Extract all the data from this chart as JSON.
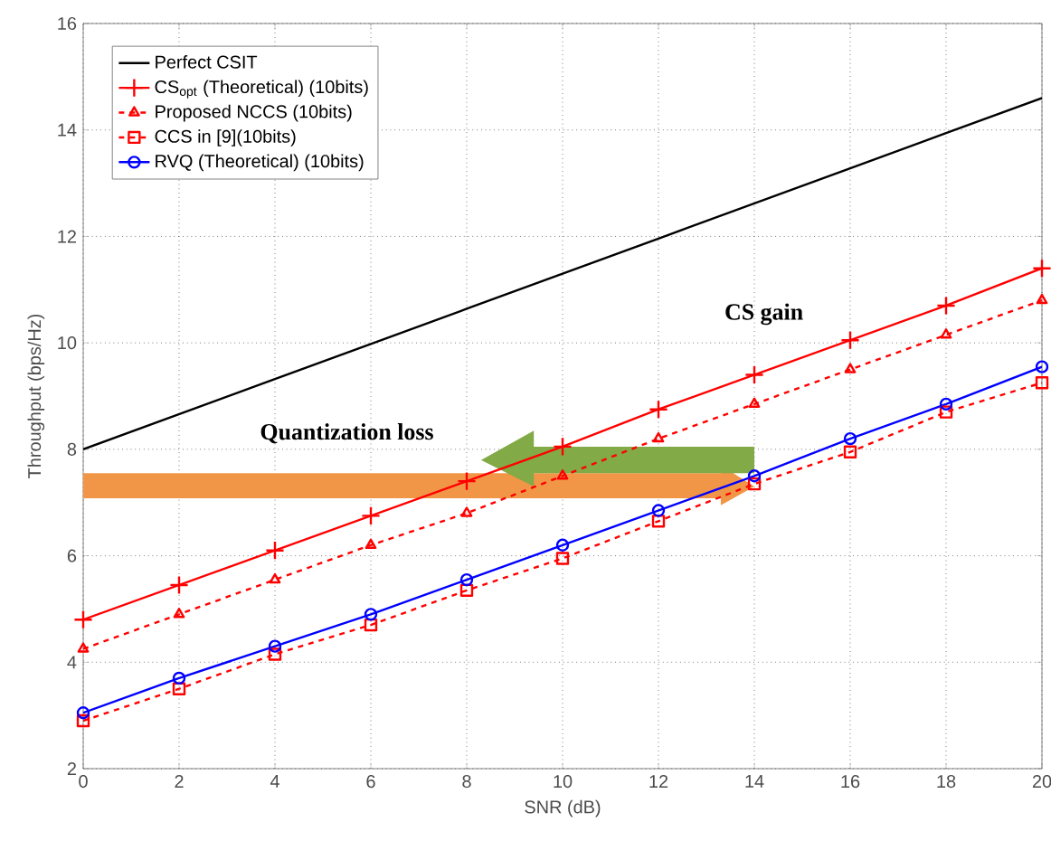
{
  "chart_data": {
    "type": "line",
    "xlabel": "SNR (dB)",
    "ylabel": "Throughput (bps/Hz)",
    "x": [
      0,
      2,
      4,
      6,
      8,
      10,
      12,
      14,
      16,
      18,
      20
    ],
    "series": [
      {
        "name": "Perfect CSIT",
        "color": "#000000",
        "marker": "none",
        "line_style": "solid",
        "values": [
          8.0,
          8.66,
          9.32,
          9.98,
          10.64,
          11.3,
          11.96,
          12.62,
          13.28,
          13.94,
          14.6
        ]
      },
      {
        "name": "CS$_{opt}$ (Theoretical) (10bits)",
        "color": "#ff0000",
        "marker": "cross",
        "line_style": "solid",
        "values": [
          4.8,
          5.45,
          6.1,
          6.75,
          7.4,
          8.05,
          8.75,
          9.4,
          10.05,
          10.7,
          11.4
        ]
      },
      {
        "name": "Proposed NCCS (10bits)",
        "color": "#ff0000",
        "marker": "triangle",
        "line_style": "dashed",
        "values": [
          4.25,
          4.9,
          5.55,
          6.2,
          6.8,
          7.5,
          8.2,
          8.85,
          9.5,
          10.15,
          10.8
        ]
      },
      {
        "name": "CCS in [9](10bits)",
        "color": "#ff0000",
        "marker": "square",
        "line_style": "dashed",
        "values": [
          2.9,
          3.5,
          4.15,
          4.7,
          5.35,
          5.95,
          6.65,
          7.35,
          7.95,
          8.7,
          9.25
        ]
      },
      {
        "name": "RVQ (Theoretical) (10bits)",
        "color": "#0000ff",
        "marker": "circle",
        "line_style": "solid",
        "values": [
          3.05,
          3.7,
          4.3,
          4.9,
          5.55,
          6.2,
          6.85,
          7.5,
          8.2,
          8.85,
          9.55
        ]
      }
    ],
    "annotations": [
      "Quantization loss",
      "CS gain"
    ],
    "xlim": [
      0,
      20
    ],
    "ylim": [
      2,
      16
    ],
    "xticks": [
      0,
      2,
      4,
      6,
      8,
      10,
      12,
      14,
      16,
      18,
      20
    ],
    "yticks": [
      2,
      4,
      6,
      8,
      10,
      12,
      14,
      16
    ],
    "grid": true,
    "legend": "top left"
  }
}
